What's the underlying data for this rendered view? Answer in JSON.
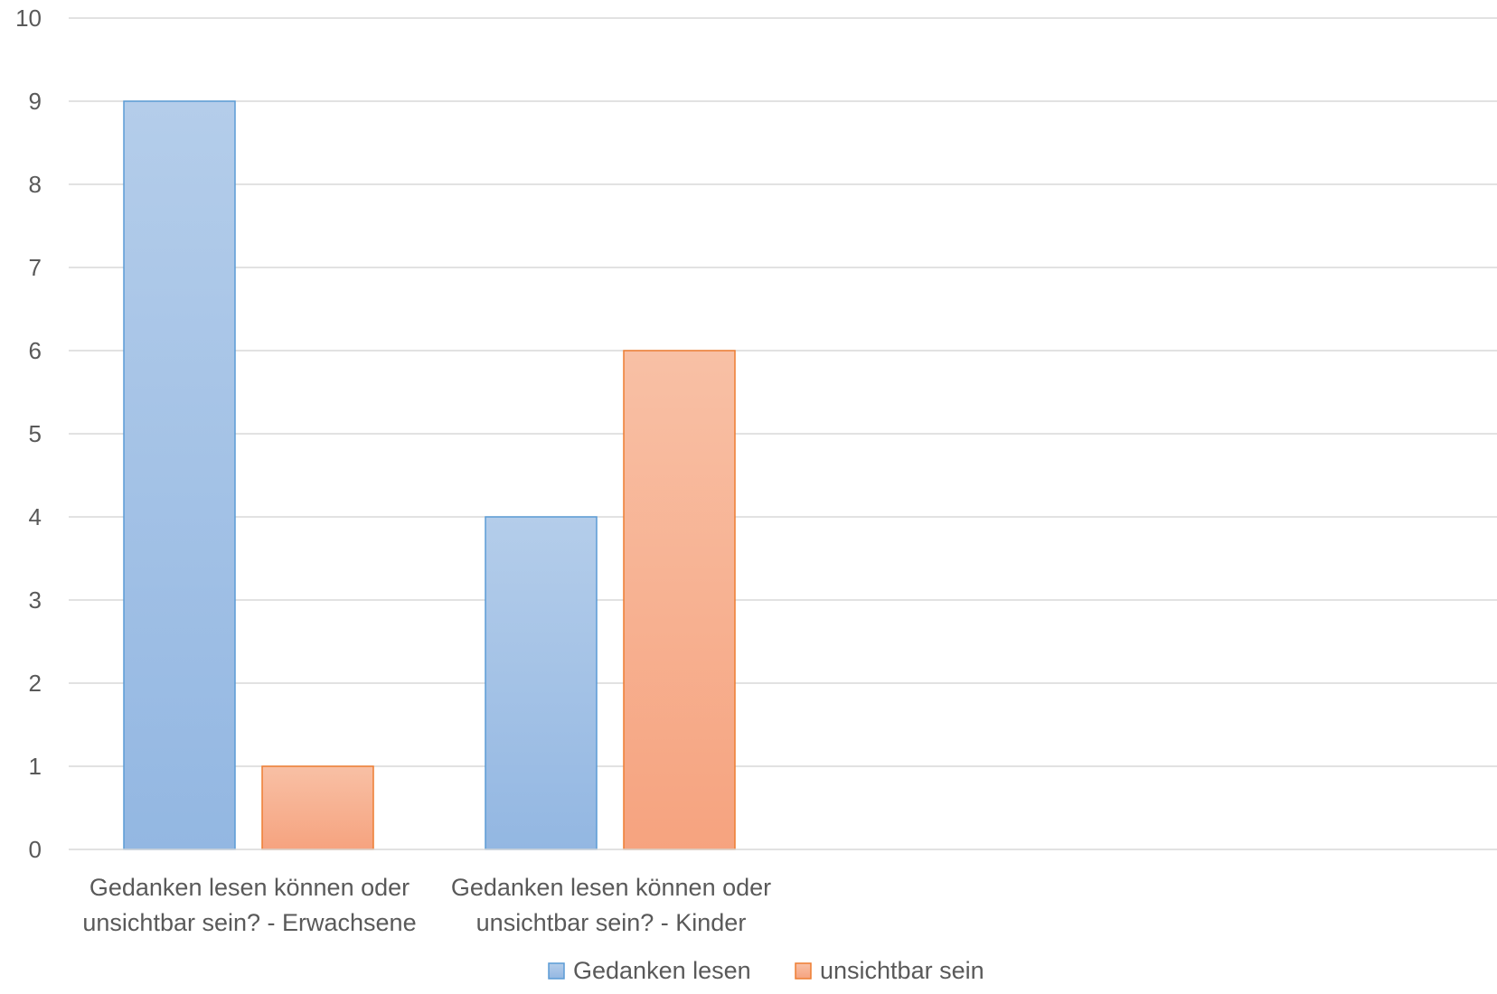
{
  "chart_data": {
    "type": "bar",
    "categories": [
      [
        "Gedanken lesen können oder",
        "unsichtbar sein? - Erwachsene"
      ],
      [
        "Gedanken lesen können oder",
        "unsichtbar sein? - Kinder"
      ]
    ],
    "series": [
      {
        "name": "Gedanken lesen",
        "values": [
          9,
          4
        ],
        "fill_top": "#b4cdea",
        "fill_bottom": "#93b7e2",
        "stroke": "#5b9bd5"
      },
      {
        "name": "unsichtbar sein",
        "values": [
          1,
          6
        ],
        "fill_top": "#f8c0a5",
        "fill_bottom": "#f6a37f",
        "stroke": "#ed7d31"
      }
    ],
    "ylim": [
      0,
      10
    ],
    "yticks": [
      0,
      1,
      2,
      3,
      4,
      5,
      6,
      7,
      8,
      9,
      10
    ],
    "title": "",
    "xlabel": "",
    "ylabel": "",
    "grid": true,
    "legend_position": "bottom",
    "gridline_color": "#d9d9d9",
    "text_color": "#595959"
  }
}
